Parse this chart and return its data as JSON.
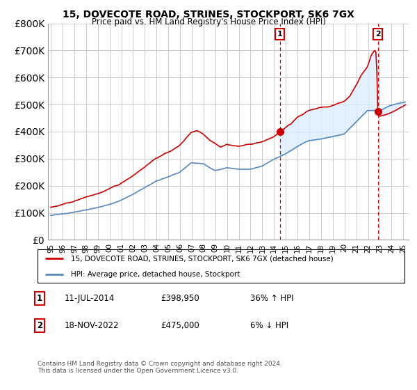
{
  "title": "15, DOVECOTE ROAD, STRINES, STOCKPORT, SK6 7GX",
  "subtitle": "Price paid vs. HM Land Registry's House Price Index (HPI)",
  "legend_line1": "15, DOVECOTE ROAD, STRINES, STOCKPORT, SK6 7GX (detached house)",
  "legend_line2": "HPI: Average price, detached house, Stockport",
  "sale1_date": "11-JUL-2014",
  "sale1_price": "£398,950",
  "sale1_hpi": "36% ↑ HPI",
  "sale1_year": 2014.53,
  "sale2_date": "18-NOV-2022",
  "sale2_price": "£475,000",
  "sale2_hpi": "6% ↓ HPI",
  "sale2_year": 2022.88,
  "footer": "Contains HM Land Registry data © Crown copyright and database right 2024.\nThis data is licensed under the Open Government Licence v3.0.",
  "red_color": "#cc0000",
  "blue_color": "#5588bb",
  "fill_color": "#ddeeff",
  "dashed_color": "#cc0000",
  "ylim": [
    0,
    800000
  ],
  "xlim_start": 1994.8,
  "xlim_end": 2025.5
}
